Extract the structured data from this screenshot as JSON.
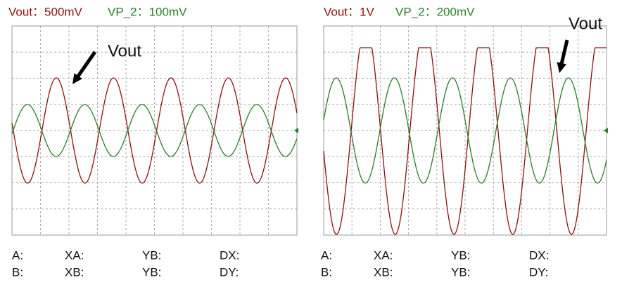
{
  "panels": [
    {
      "header": {
        "channel1": "Vout：500mV",
        "channel2": "VP_2：100mV"
      },
      "annotation": "Vout",
      "readouts": [
        [
          "A:",
          "XA:",
          "YB:",
          "DX:"
        ],
        [
          "B:",
          "XB:",
          "YB:",
          "DY:"
        ]
      ]
    },
    {
      "header": {
        "channel1": "Vout：1V",
        "channel2": "VP_2：200mV"
      },
      "annotation": "Vout",
      "readouts": [
        [
          "A:",
          "XA:",
          "YB:",
          "DX:"
        ],
        [
          "B:",
          "XB:",
          "YB:",
          "DY:"
        ]
      ]
    }
  ]
}
